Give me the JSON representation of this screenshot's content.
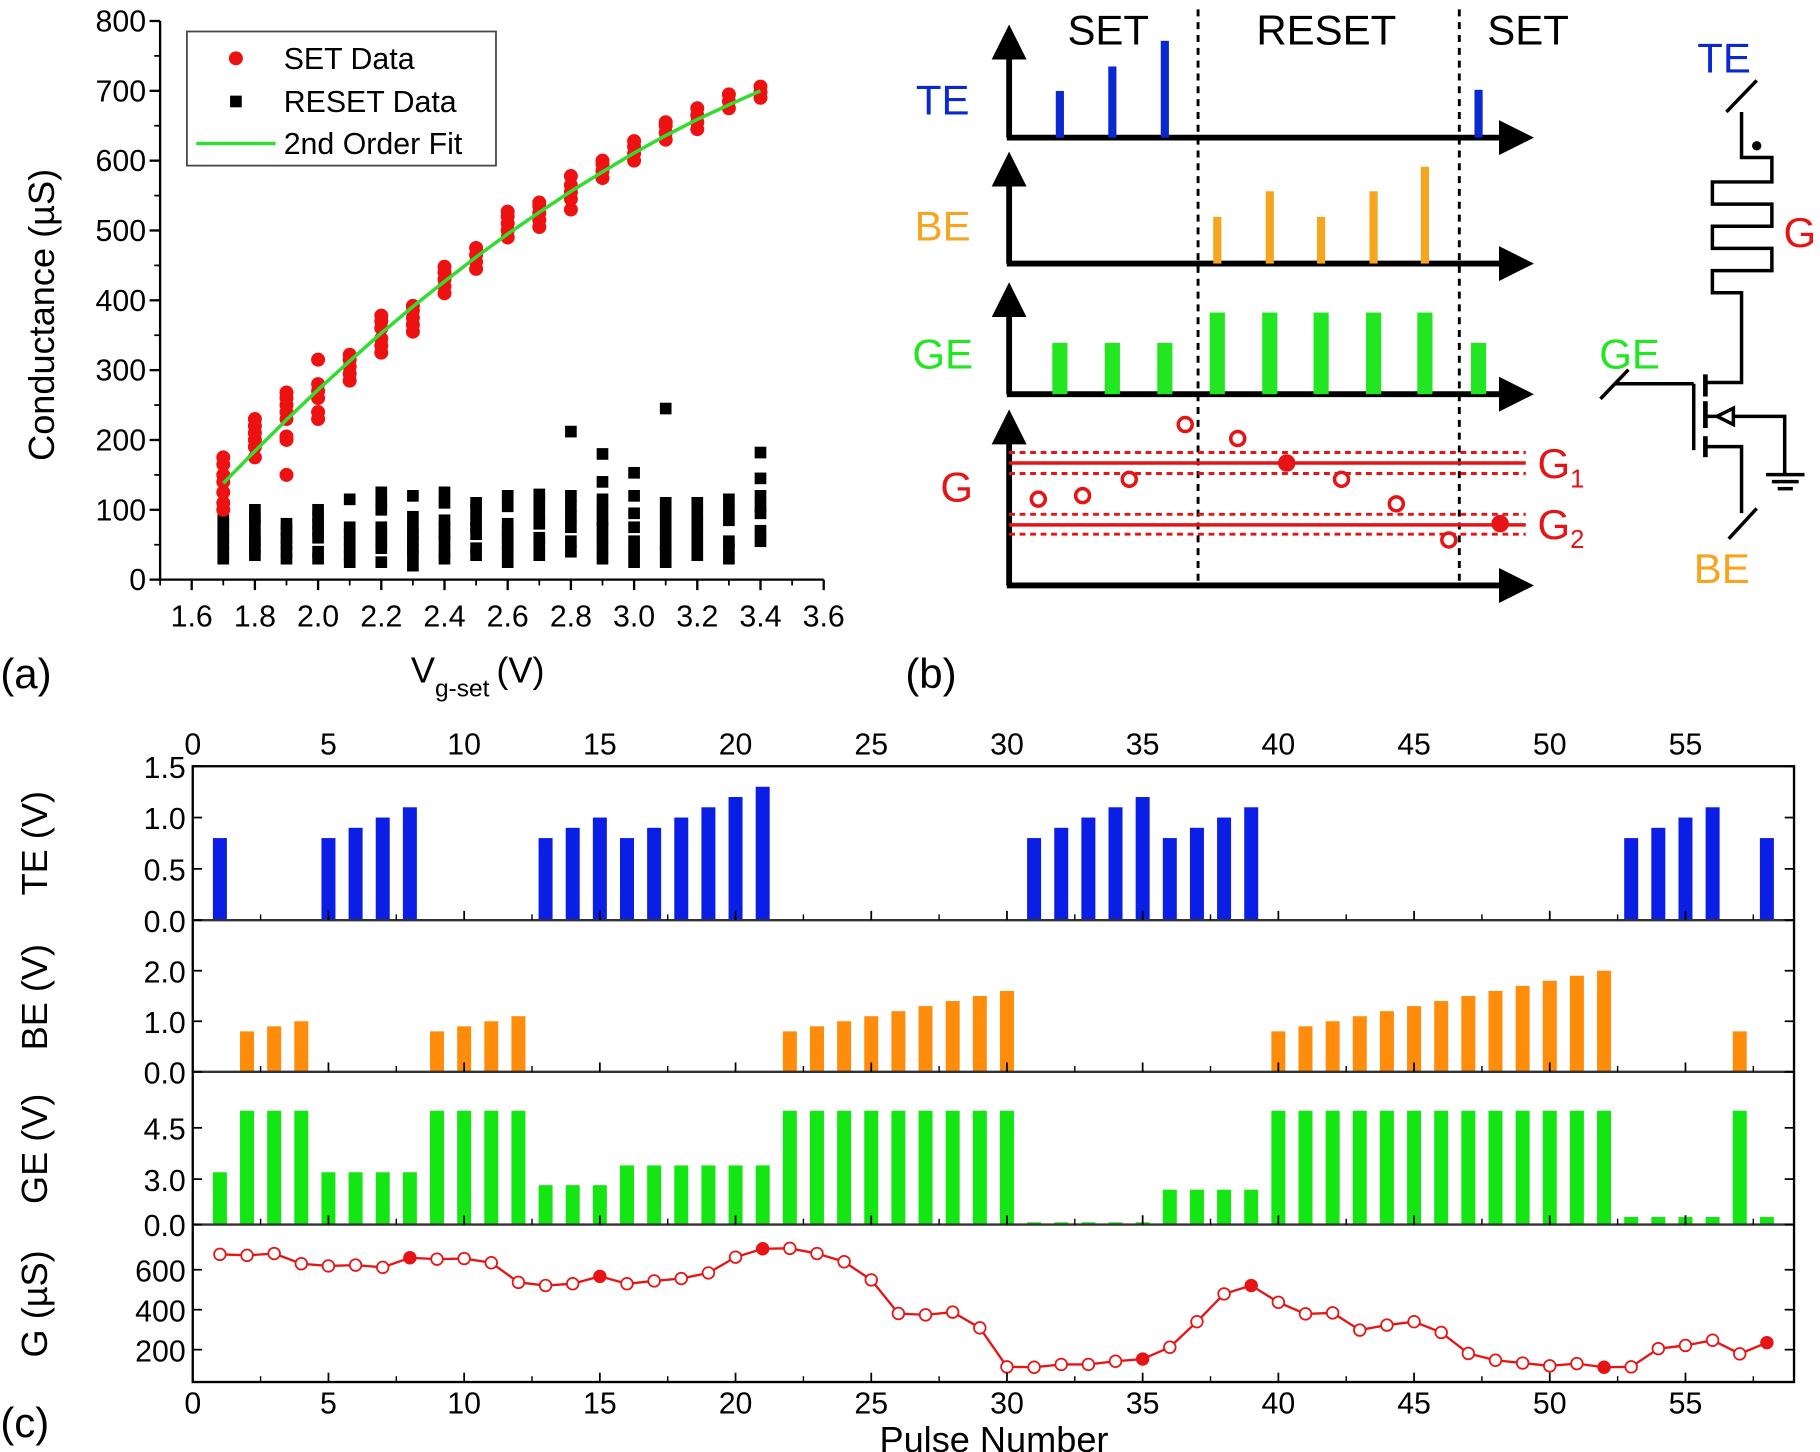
{
  "panel_labels": {
    "a": "(a)",
    "b": "(b)",
    "c": "(c)"
  },
  "colors": {
    "te": "#0a1ee6",
    "be": "#ff8c0a",
    "ge": "#14e614",
    "g": "#e61414",
    "fit": "#32dc32",
    "set": "#ee1111",
    "reset": "#000000"
  },
  "chart_data": [
    {
      "panel": "a",
      "type": "scatter",
      "xlabel": {
        "main": "V",
        "sub": "g-set",
        "unit": "(V)"
      },
      "ylabel": "Conductance (µS)",
      "xlim": [
        1.5,
        3.6
      ],
      "ylim": [
        0,
        800
      ],
      "xticks": [
        "1.6",
        "1.8",
        "2.0",
        "2.2",
        "2.4",
        "2.6",
        "2.8",
        "3.0",
        "3.2",
        "3.4",
        "3.6"
      ],
      "yticks": [
        "0",
        "100",
        "200",
        "300",
        "400",
        "500",
        "600",
        "700",
        "800"
      ],
      "grid": false,
      "legend_position": "top-left",
      "legend": [
        "SET Data",
        "RESET Data",
        "2nd Order Fit"
      ],
      "set_data": {
        "x": [
          1.7,
          1.8,
          1.9,
          2.0,
          2.1,
          2.2,
          2.3,
          2.4,
          2.5,
          2.6,
          2.7,
          2.8,
          2.9,
          3.0,
          3.1,
          3.2,
          3.3,
          3.4
        ],
        "y": [
          [
            100,
            110,
            125,
            140,
            150,
            165,
            175
          ],
          [
            175,
            190,
            200,
            210,
            220,
            230
          ],
          [
            150,
            200,
            205,
            230,
            240,
            250,
            260,
            268
          ],
          [
            230,
            240,
            260,
            270,
            280,
            315
          ],
          [
            285,
            295,
            305,
            315,
            322
          ],
          [
            325,
            335,
            345,
            360,
            370,
            378
          ],
          [
            355,
            365,
            375,
            385,
            392
          ],
          [
            410,
            420,
            430,
            440,
            448
          ],
          [
            445,
            455,
            465,
            475
          ],
          [
            490,
            500,
            510,
            520,
            527
          ],
          [
            505,
            515,
            525,
            535,
            540
          ],
          [
            530,
            545,
            555,
            565,
            578
          ],
          [
            575,
            585,
            595,
            600
          ],
          [
            600,
            610,
            620,
            628
          ],
          [
            630,
            640,
            650,
            655
          ],
          [
            645,
            655,
            665,
            675
          ],
          [
            675,
            685,
            695
          ],
          [
            690,
            698,
            706
          ]
        ]
      },
      "reset_data": {
        "x": [
          1.7,
          1.8,
          1.9,
          2.0,
          2.1,
          2.2,
          2.3,
          2.4,
          2.5,
          2.6,
          2.7,
          2.8,
          2.9,
          3.0,
          3.1,
          3.2,
          3.3,
          3.4
        ],
        "y": [
          [
            30,
            40,
            50,
            60,
            70,
            80,
            85
          ],
          [
            35,
            45,
            55,
            65,
            80,
            90,
            100
          ],
          [
            30,
            40,
            50,
            60,
            70,
            80
          ],
          [
            30,
            40,
            60,
            70,
            80,
            90,
            100
          ],
          [
            25,
            35,
            45,
            55,
            65,
            75,
            115
          ],
          [
            25,
            45,
            55,
            65,
            75,
            100,
            110,
            125
          ],
          [
            20,
            35,
            45,
            55,
            65,
            75,
            90,
            120
          ],
          [
            30,
            40,
            55,
            65,
            75,
            85,
            110,
            125
          ],
          [
            35,
            45,
            65,
            75,
            85,
            100,
            110
          ],
          [
            25,
            40,
            50,
            60,
            70,
            80,
            105,
            120
          ],
          [
            35,
            50,
            60,
            80,
            95,
            110,
            122
          ],
          [
            40,
            55,
            75,
            90,
            105,
            120,
            212
          ],
          [
            30,
            45,
            60,
            75,
            85,
            100,
            115,
            140,
            180
          ],
          [
            25,
            40,
            55,
            75,
            95,
            120,
            153
          ],
          [
            25,
            40,
            50,
            65,
            80,
            95,
            110,
            245
          ],
          [
            35,
            50,
            65,
            80,
            95,
            110
          ],
          [
            30,
            45,
            55,
            85,
            100,
            115
          ],
          [
            55,
            70,
            95,
            105,
            120,
            145,
            182
          ]
        ]
      },
      "fit": {
        "x": [
          1.7,
          1.8,
          1.9,
          2.0,
          2.1,
          2.2,
          2.3,
          2.4,
          2.5,
          2.6,
          2.7,
          2.8,
          2.9,
          3.0,
          3.1,
          3.2,
          3.3,
          3.4
        ],
        "y": [
          138,
          184,
          229,
          272,
          313,
          353,
          391,
          427,
          462,
          495,
          526,
          556,
          584,
          611,
          636,
          659,
          680,
          700
        ]
      }
    },
    {
      "panel": "c",
      "type": "bar",
      "xlabel": "Pulse Number",
      "xlim": [
        0,
        59
      ],
      "xticks": [
        "0",
        "5",
        "10",
        "15",
        "20",
        "25",
        "30",
        "35",
        "40",
        "45",
        "50",
        "55"
      ],
      "x": [
        1,
        2,
        3,
        4,
        5,
        6,
        7,
        8,
        9,
        10,
        11,
        12,
        13,
        14,
        15,
        16,
        17,
        18,
        19,
        20,
        21,
        22,
        23,
        24,
        25,
        26,
        27,
        28,
        29,
        30,
        31,
        32,
        33,
        34,
        35,
        36,
        37,
        38,
        39,
        40,
        41,
        42,
        43,
        44,
        45,
        46,
        47,
        48,
        49,
        50,
        51,
        52,
        53,
        54,
        55,
        56,
        57,
        58
      ],
      "subplots": [
        {
          "ylabel": "TE (V)",
          "ylim": [
            0,
            1.5
          ],
          "yticks": [
            "0.0",
            "0.5",
            "1.0",
            "1.5"
          ],
          "values": [
            0.8,
            0,
            0,
            0,
            0.8,
            0.9,
            1.0,
            1.1,
            0,
            0,
            0,
            0,
            0.8,
            0.9,
            1.0,
            0.8,
            0.9,
            1.0,
            1.1,
            1.2,
            1.3,
            0,
            0,
            0,
            0,
            0,
            0,
            0,
            0,
            0,
            0.8,
            0.9,
            1.0,
            1.1,
            1.2,
            0.8,
            0.9,
            1.0,
            1.1,
            0,
            0,
            0,
            0,
            0,
            0,
            0,
            0,
            0,
            0,
            0,
            0,
            0,
            0.8,
            0.9,
            1.0,
            1.1,
            0,
            0.8
          ]
        },
        {
          "ylabel": "BE (V)",
          "ylim": [
            0,
            3.0
          ],
          "yticks": [
            "0.0",
            "1.0",
            "2.0"
          ],
          "values": [
            0,
            0.8,
            0.9,
            1.0,
            0,
            0,
            0,
            0,
            0.8,
            0.9,
            1.0,
            1.1,
            0,
            0,
            0,
            0,
            0,
            0,
            0,
            0,
            0,
            0.8,
            0.9,
            1.0,
            1.1,
            1.2,
            1.3,
            1.4,
            1.5,
            1.6,
            0,
            0,
            0,
            0,
            0,
            0,
            0,
            0,
            0,
            0.8,
            0.9,
            1.0,
            1.1,
            1.2,
            1.3,
            1.4,
            1.5,
            1.6,
            1.7,
            1.8,
            1.9,
            2.0,
            0,
            0,
            0,
            0,
            0.8,
            0
          ]
        },
        {
          "ylabel": "GE (V)",
          "ylim": [
            0,
            6.1
          ],
          "yticks": [
            "0.0",
            "3.0",
            "4.5"
          ],
          "values": [
            3.2,
            5.0,
            5.0,
            5.0,
            3.2,
            3.2,
            3.2,
            3.2,
            5.0,
            5.0,
            5.0,
            5.0,
            2.6,
            2.6,
            2.6,
            3.4,
            3.4,
            3.4,
            3.4,
            3.4,
            3.4,
            5.0,
            5.0,
            5.0,
            5.0,
            5.0,
            5.0,
            5.0,
            5.0,
            5.0,
            0.15,
            0.15,
            0.15,
            0.15,
            0.15,
            2.3,
            2.3,
            2.3,
            2.3,
            5.0,
            5.0,
            5.0,
            5.0,
            5.0,
            5.0,
            5.0,
            5.0,
            5.0,
            5.0,
            5.0,
            5.0,
            5.0,
            0.5,
            0.5,
            0.5,
            0.5,
            5.0,
            0.5
          ]
        },
        {
          "ylabel": "G (µS)",
          "type": "line",
          "ylim": [
            38,
            826
          ],
          "yticks": [
            "200",
            "400",
            "600"
          ],
          "values": [
            677,
            672,
            681,
            630,
            619,
            623,
            612,
            660,
            653,
            656,
            635,
            537,
            521,
            530,
            567,
            530,
            544,
            556,
            584,
            663,
            705,
            707,
            681,
            640,
            549,
            381,
            374,
            388,
            309,
            114,
            112,
            126,
            126,
            142,
            153,
            212,
            340,
            479,
            521,
            437,
            379,
            384,
            298,
            323,
            340,
            286,
            181,
            147,
            133,
            119,
            130,
            112,
            114,
            205,
            221,
            247,
            179,
            235
          ],
          "filled_markers_at_pulse": [
            8,
            15,
            21,
            35,
            39,
            52,
            58
          ]
        }
      ]
    }
  ],
  "diagram_b": {
    "phases": [
      "SET",
      "RESET",
      "SET"
    ],
    "rows": [
      "TE",
      "BE",
      "GE",
      "G"
    ],
    "levels": [
      "G",
      "1",
      "G",
      "2"
    ],
    "circuit": {
      "top": "TE",
      "device": "G",
      "gate": "GE",
      "bottom": "BE"
    }
  }
}
